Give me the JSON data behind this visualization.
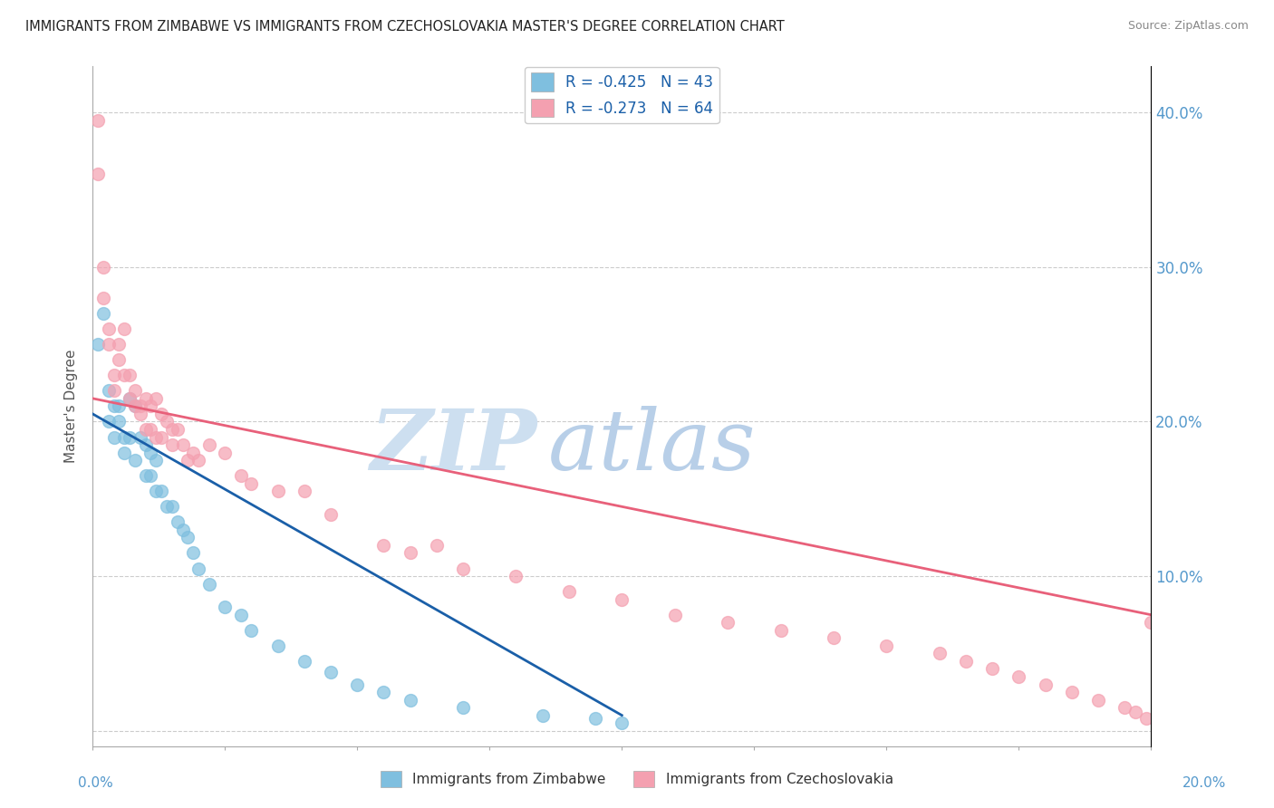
{
  "title": "IMMIGRANTS FROM ZIMBABWE VS IMMIGRANTS FROM CZECHOSLOVAKIA MASTER'S DEGREE CORRELATION CHART",
  "source": "Source: ZipAtlas.com",
  "ylabel": "Master's Degree",
  "y_ticks": [
    0.0,
    0.1,
    0.2,
    0.3,
    0.4
  ],
  "y_tick_labels": [
    "",
    "10.0%",
    "20.0%",
    "30.0%",
    "40.0%"
  ],
  "x_lim": [
    0.0,
    0.2
  ],
  "y_lim": [
    -0.01,
    0.43
  ],
  "color_blue": "#7fbfdf",
  "color_pink": "#f4a0b0",
  "color_blue_line": "#1a5fa8",
  "color_pink_line": "#e8607a",
  "color_axis_label": "#5599cc",
  "watermark_zip": "ZIP",
  "watermark_atlas": "atlas",
  "watermark_color_zip": "#c8dff0",
  "watermark_color_atlas": "#b8d0e8",
  "label1": "Immigrants from Zimbabwe",
  "label2": "Immigrants from Czechoslovakia",
  "zim_x": [
    0.001,
    0.002,
    0.003,
    0.003,
    0.004,
    0.004,
    0.005,
    0.005,
    0.006,
    0.006,
    0.007,
    0.007,
    0.008,
    0.008,
    0.009,
    0.01,
    0.01,
    0.011,
    0.011,
    0.012,
    0.012,
    0.013,
    0.014,
    0.015,
    0.016,
    0.017,
    0.018,
    0.019,
    0.02,
    0.022,
    0.025,
    0.028,
    0.03,
    0.035,
    0.04,
    0.045,
    0.05,
    0.055,
    0.06,
    0.07,
    0.085,
    0.095,
    0.1
  ],
  "zim_y": [
    0.25,
    0.27,
    0.22,
    0.2,
    0.21,
    0.19,
    0.21,
    0.2,
    0.19,
    0.18,
    0.215,
    0.19,
    0.21,
    0.175,
    0.19,
    0.185,
    0.165,
    0.18,
    0.165,
    0.175,
    0.155,
    0.155,
    0.145,
    0.145,
    0.135,
    0.13,
    0.125,
    0.115,
    0.105,
    0.095,
    0.08,
    0.075,
    0.065,
    0.055,
    0.045,
    0.038,
    0.03,
    0.025,
    0.02,
    0.015,
    0.01,
    0.008,
    0.005
  ],
  "cze_x": [
    0.001,
    0.001,
    0.002,
    0.002,
    0.003,
    0.003,
    0.004,
    0.004,
    0.005,
    0.005,
    0.006,
    0.006,
    0.007,
    0.007,
    0.008,
    0.008,
    0.009,
    0.009,
    0.01,
    0.01,
    0.011,
    0.011,
    0.012,
    0.012,
    0.013,
    0.013,
    0.014,
    0.015,
    0.015,
    0.016,
    0.017,
    0.018,
    0.019,
    0.02,
    0.022,
    0.025,
    0.028,
    0.03,
    0.035,
    0.04,
    0.045,
    0.055,
    0.06,
    0.065,
    0.07,
    0.08,
    0.09,
    0.1,
    0.11,
    0.12,
    0.13,
    0.14,
    0.15,
    0.16,
    0.165,
    0.17,
    0.175,
    0.18,
    0.185,
    0.19,
    0.195,
    0.197,
    0.199,
    0.2
  ],
  "cze_y": [
    0.395,
    0.36,
    0.3,
    0.28,
    0.26,
    0.25,
    0.23,
    0.22,
    0.25,
    0.24,
    0.26,
    0.23,
    0.23,
    0.215,
    0.22,
    0.21,
    0.21,
    0.205,
    0.215,
    0.195,
    0.21,
    0.195,
    0.215,
    0.19,
    0.205,
    0.19,
    0.2,
    0.195,
    0.185,
    0.195,
    0.185,
    0.175,
    0.18,
    0.175,
    0.185,
    0.18,
    0.165,
    0.16,
    0.155,
    0.155,
    0.14,
    0.12,
    0.115,
    0.12,
    0.105,
    0.1,
    0.09,
    0.085,
    0.075,
    0.07,
    0.065,
    0.06,
    0.055,
    0.05,
    0.045,
    0.04,
    0.035,
    0.03,
    0.025,
    0.02,
    0.015,
    0.012,
    0.008,
    0.07
  ]
}
